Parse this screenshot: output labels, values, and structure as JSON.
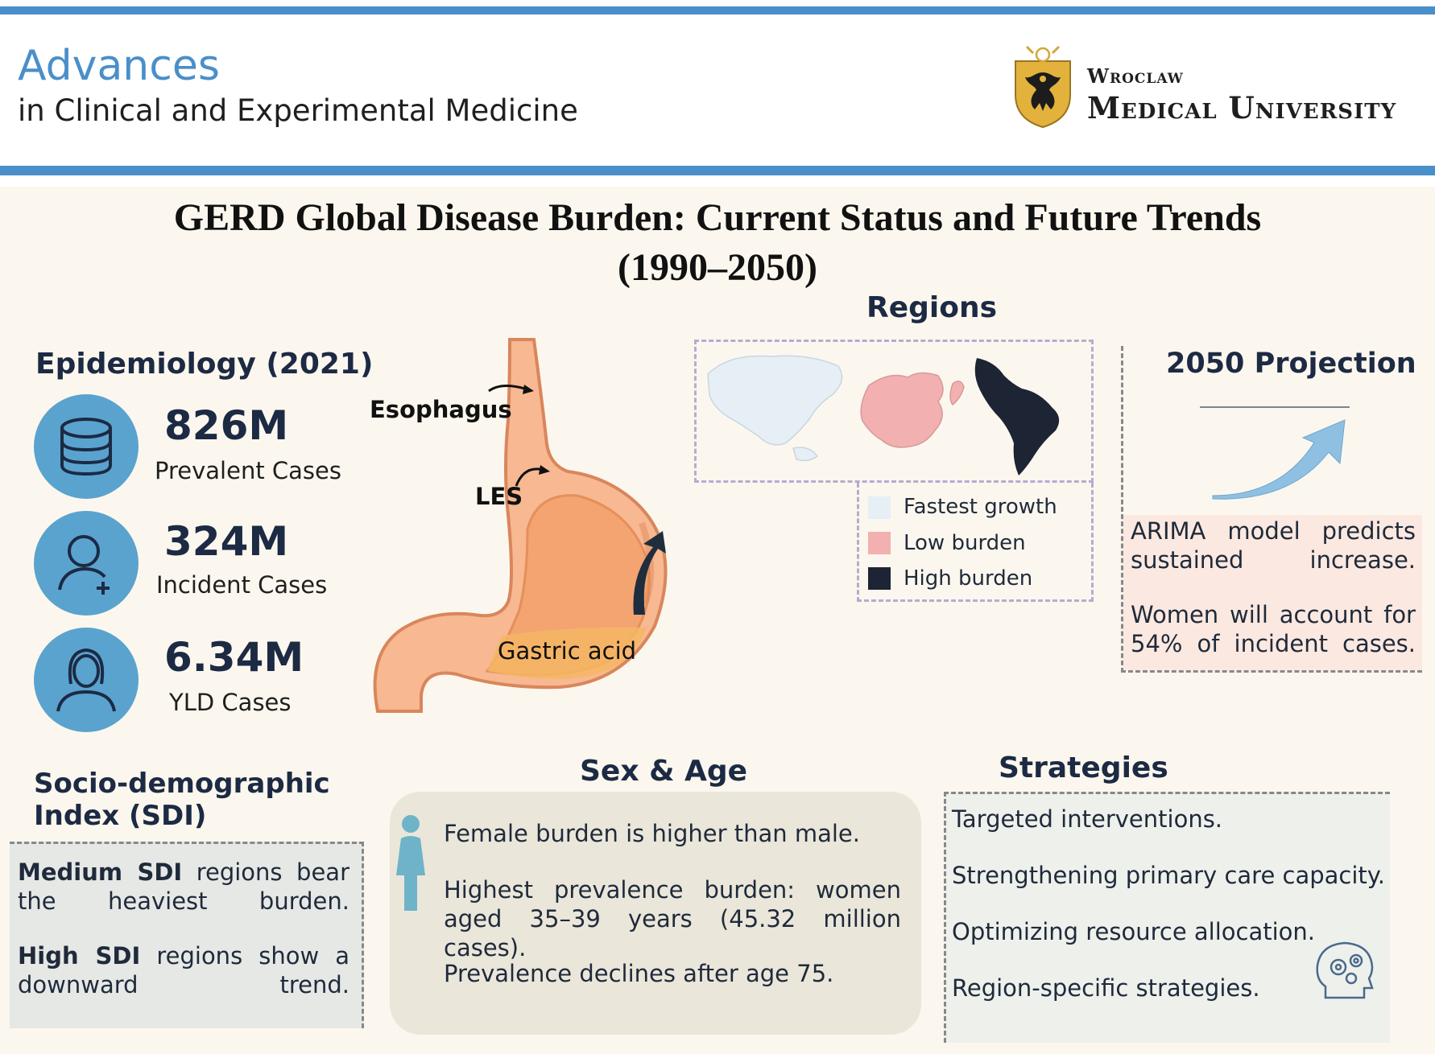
{
  "header": {
    "journal_title_line1": "Advances",
    "journal_title_line2": "in Clinical and Experimental Medicine",
    "university_line1": "Wroclaw",
    "university_line2": "Medical University",
    "accent_color": "#4a8fc9"
  },
  "title": {
    "line1": "GERD Global Disease Burden: Current Status and Future Trends",
    "line2": "(1990–2050)"
  },
  "epidemiology": {
    "heading": "Epidemiology (2021)",
    "stats": [
      {
        "value": "826M",
        "label": "Prevalent Cases",
        "icon": "database-icon"
      },
      {
        "value": "324M",
        "label": "Incident Cases",
        "icon": "user-add-icon"
      },
      {
        "value": "6.34M",
        "label": "YLD Cases",
        "icon": "woman-icon"
      }
    ]
  },
  "anatomy": {
    "esophagus": "Esophagus",
    "les": "LES",
    "gastric_acid": "Gastric acid"
  },
  "regions": {
    "heading": "Regions",
    "legend": [
      {
        "label": "Fastest growth",
        "color": "#e6eff5"
      },
      {
        "label": "Low burden",
        "color": "#f2b0b0"
      },
      {
        "label": "High burden",
        "color": "#1d2433"
      }
    ]
  },
  "projection": {
    "heading": "2050 Projection",
    "text1": "ARIMA model predicts sustained increase.",
    "text2": "Women will account for 54% of incident cases."
  },
  "sdi": {
    "heading_line1": "Socio-demographic",
    "heading_line2": "Index (SDI)",
    "p1_bold": "Medium SDI",
    "p1_rest": " regions bear the heaviest burden.",
    "p2_bold": "High SDI",
    "p2_rest": " regions show a downward trend."
  },
  "sex_age": {
    "heading": "Sex & Age",
    "text1": "Female burden is higher than male.",
    "text2": "Highest prevalence burden: women aged 35–39 years (45.32 million cases).",
    "text3": "Prevalence declines after age 75."
  },
  "strategies": {
    "heading": "Strategies",
    "items": [
      "Targeted interventions.",
      "Strengthening primary care capacity.",
      "Optimizing resource allocation.",
      "Region-specific strategies."
    ]
  }
}
